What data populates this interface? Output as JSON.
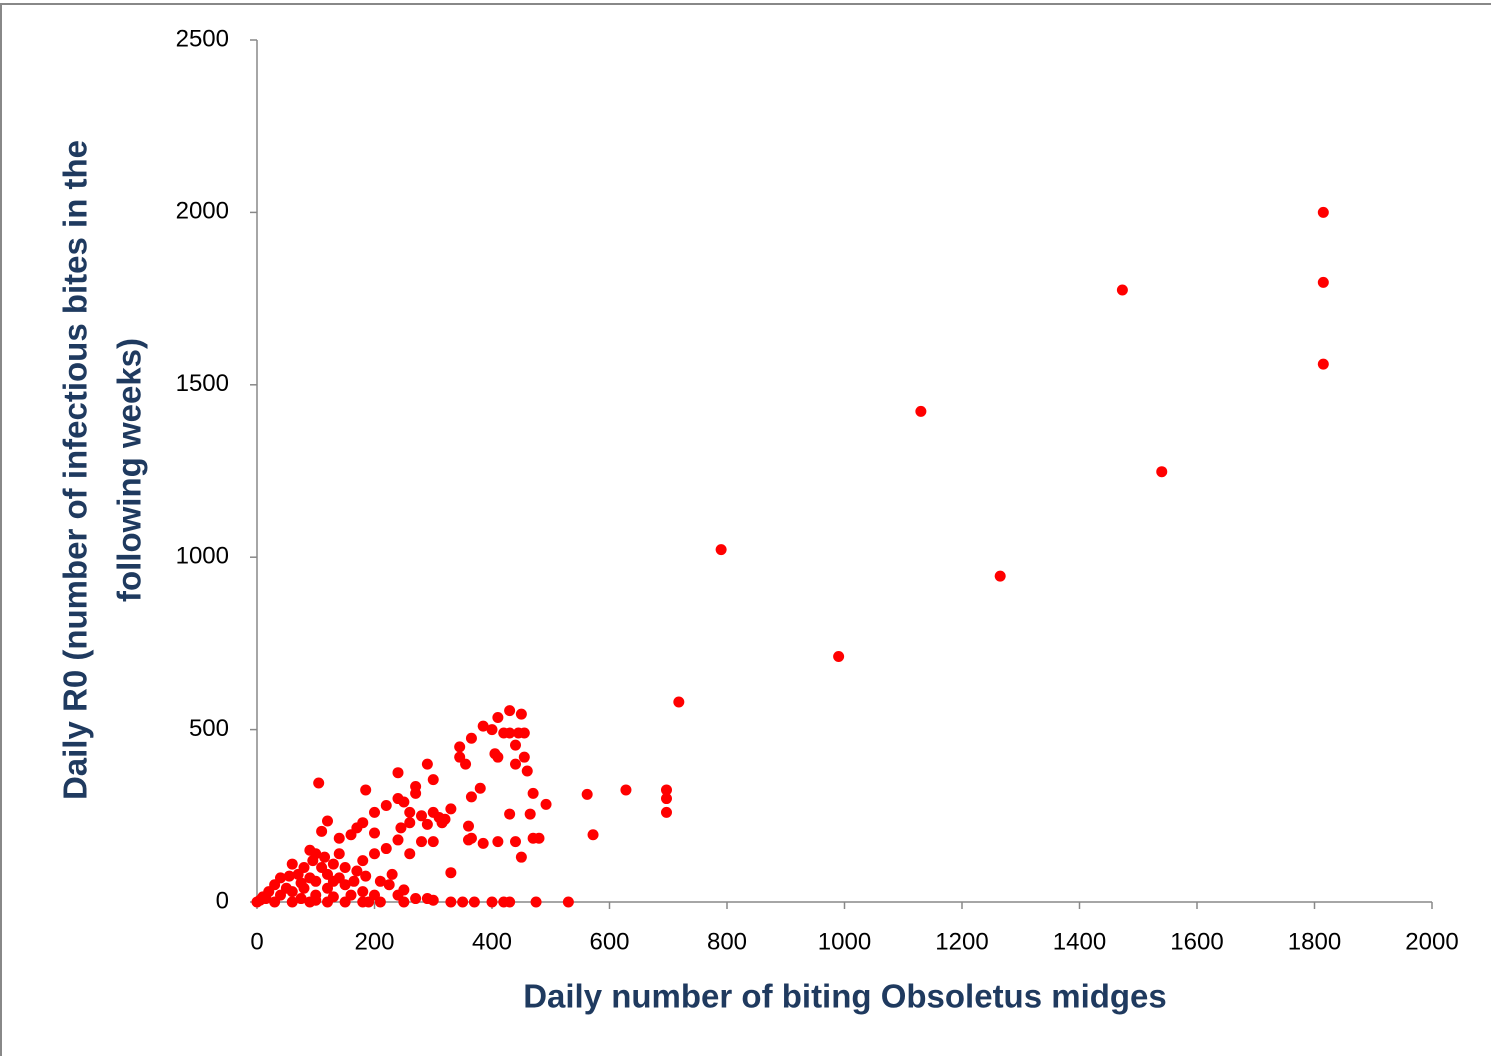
{
  "chart_data": {
    "type": "scatter",
    "xlabel": "Daily number of biting Obsoletus midges",
    "ylabel": [
      "Daily R0 (number of infectious bites in the",
      "following weeks)"
    ],
    "color": "#ff0000",
    "xlim": [
      0,
      2000
    ],
    "xticks": [
      0,
      200,
      400,
      600,
      800,
      1000,
      1200,
      1400,
      1600,
      1800,
      2000
    ],
    "ylim": [
      0,
      2500
    ],
    "yticks": [
      0,
      500,
      1000,
      1500,
      2000,
      2500
    ],
    "grid": false,
    "x": [
      1815,
      1815,
      1815,
      1473,
      1540,
      1130,
      1265,
      790,
      990,
      718,
      697,
      697,
      697,
      628,
      572,
      562,
      492,
      530,
      475,
      430,
      450,
      410,
      385,
      445,
      430,
      455,
      365,
      345,
      440,
      455,
      345,
      355,
      440,
      460,
      405,
      380,
      365,
      470,
      430,
      465,
      360,
      365,
      385,
      410,
      440,
      470,
      480,
      450,
      330,
      300,
      290,
      240,
      105,
      185,
      270,
      270,
      240,
      250,
      200,
      220,
      330,
      300,
      320,
      290,
      260,
      245,
      180,
      170,
      160,
      200,
      240,
      220,
      200,
      180,
      260,
      280,
      300,
      120,
      110,
      140,
      90,
      100,
      140,
      130,
      150,
      170,
      110,
      80,
      60,
      70,
      90,
      40,
      30,
      20,
      10,
      50,
      100,
      150,
      120,
      180,
      200,
      230,
      225,
      250,
      270,
      300,
      330,
      350,
      370,
      400,
      420,
      430,
      250,
      210,
      190,
      150,
      120,
      90,
      60,
      30,
      0,
      5,
      15,
      40,
      60,
      80,
      100,
      130,
      160,
      210,
      185,
      165,
      140,
      120,
      75,
      55,
      95,
      115,
      130,
      75,
      100,
      180,
      240,
      290,
      360,
      410,
      420,
      400,
      260,
      315,
      280,
      310
    ],
    "values": [
      2000,
      1797,
      1560,
      1775,
      1248,
      1423,
      945,
      1022,
      712,
      580,
      325,
      300,
      260,
      325,
      195,
      312,
      283,
      0,
      0,
      555,
      545,
      535,
      510,
      490,
      490,
      490,
      475,
      450,
      455,
      420,
      420,
      400,
      400,
      380,
      430,
      330,
      305,
      315,
      255,
      255,
      220,
      185,
      170,
      175,
      175,
      185,
      185,
      130,
      85,
      355,
      400,
      375,
      345,
      325,
      315,
      335,
      300,
      290,
      260,
      280,
      270,
      260,
      240,
      225,
      230,
      215,
      230,
      215,
      195,
      200,
      180,
      155,
      140,
      120,
      140,
      175,
      175,
      235,
      205,
      185,
      150,
      140,
      140,
      110,
      100,
      90,
      100,
      100,
      110,
      80,
      70,
      70,
      50,
      30,
      15,
      40,
      60,
      50,
      40,
      30,
      20,
      80,
      50,
      35,
      10,
      5,
      0,
      0,
      0,
      0,
      0,
      0,
      0,
      0,
      0,
      0,
      0,
      0,
      0,
      0,
      0,
      5,
      10,
      20,
      30,
      40,
      20,
      15,
      20,
      60,
      75,
      60,
      70,
      80,
      55,
      75,
      120,
      130,
      60,
      10,
      5,
      0,
      20,
      10,
      180,
      420,
      490,
      500,
      260,
      230,
      250,
      245
    ]
  }
}
